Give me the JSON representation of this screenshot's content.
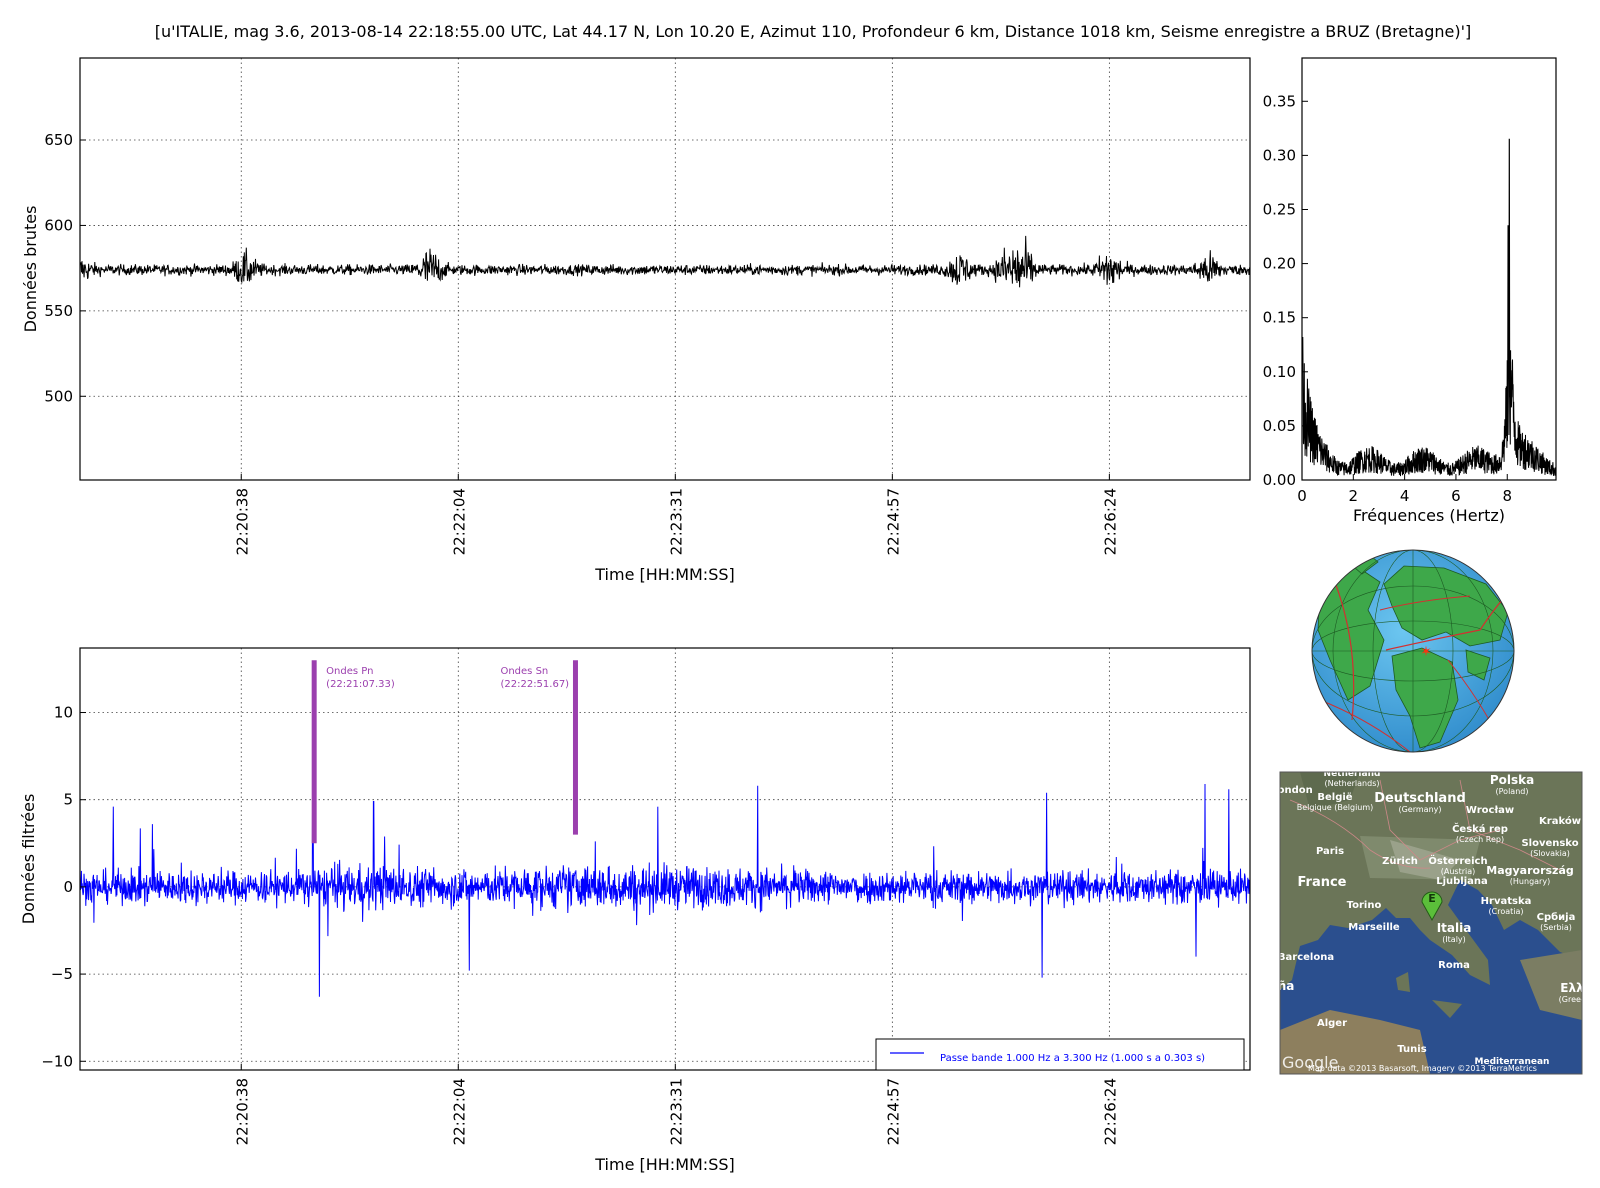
{
  "figure_title": "[u'ITALIE, mag 3.6, 2013-08-14 22:18:55.00 UTC, Lat 44.17 N, Lon 10.20 E, Azimut 110, Profondeur 6 km, Distance 1018 km, Seisme enregistre a BRUZ (Bretagne)']",
  "colors": {
    "raw": "#000000",
    "filtered": "#0000ff",
    "markers": "#9b3fae",
    "legend_text": "#0000ff"
  },
  "chart_data": [
    {
      "id": "raw",
      "type": "line",
      "xlabel": "Time [HH:MM:SS]",
      "ylabel": "Données brutes",
      "x_ticks": [
        "22:20:38",
        "22:22:04",
        "22:23:31",
        "22:24:57",
        "22:26:24"
      ],
      "x_tick_values": [
        0,
        1,
        2,
        3,
        4
      ],
      "xlim": [
        -0.743,
        4.648
      ],
      "ylim": [
        451,
        698
      ],
      "y_ticks": [
        500,
        550,
        600,
        650
      ],
      "grid": true,
      "baseline": 574,
      "noise_envelope": 4,
      "events": [
        {
          "x": 0.02,
          "amplitude": 10
        },
        {
          "x": -0.74,
          "amplitude": 7
        },
        {
          "x": 0.87,
          "amplitude": 14
        },
        {
          "x": 3.31,
          "amplitude": 11
        },
        {
          "x": 3.53,
          "amplitude": 13
        },
        {
          "x": 3.6,
          "amplitude": 18
        },
        {
          "x": 4.0,
          "amplitude": 14
        },
        {
          "x": 4.46,
          "amplitude": 10
        }
      ]
    },
    {
      "id": "spectrum",
      "type": "line",
      "xlabel": "Fréquences (Hertz)",
      "ylabel": "",
      "xlim": [
        0,
        9.9
      ],
      "ylim": [
        0,
        0.39
      ],
      "x_ticks": [
        0,
        2,
        4,
        6,
        8
      ],
      "y_ticks": [
        "0.00",
        "0.05",
        "0.10",
        "0.15",
        "0.20",
        "0.25",
        "0.30",
        "0.35"
      ],
      "y_tick_values": [
        0,
        0.05,
        0.1,
        0.15,
        0.2,
        0.25,
        0.3,
        0.35
      ],
      "peaks": [
        {
          "x": 0.0,
          "y": 0.13
        },
        {
          "x": 0.2,
          "y": 0.08
        },
        {
          "x": 8.08,
          "y": 0.315
        },
        {
          "x": 8.05,
          "y": 0.235
        }
      ],
      "floor": 0.012
    },
    {
      "id": "filtered",
      "type": "line",
      "xlabel": "Time [HH:MM:SS]",
      "ylabel": "Données filtrées",
      "x_ticks": [
        "22:20:38",
        "22:22:04",
        "22:23:31",
        "22:24:57",
        "22:26:24"
      ],
      "x_tick_values": [
        0,
        1,
        2,
        3,
        4
      ],
      "xlim": [
        -0.743,
        4.648
      ],
      "ylim": [
        -10.5,
        13.7
      ],
      "y_ticks": [
        "−10",
        "−5",
        "0",
        "5",
        "10"
      ],
      "y_tick_values": [
        -10,
        -5,
        0,
        5,
        10
      ],
      "grid": true,
      "legend": {
        "label": "Passe bande 1.000 Hz a 3.300 Hz (1.000 s a 0.303 s)",
        "position": "lower right"
      },
      "spikes": [
        {
          "x": -0.59,
          "y": 4.6
        },
        {
          "x": 0.33,
          "y": 6.0
        },
        {
          "x": 0.36,
          "y": -6.3
        },
        {
          "x": 0.61,
          "y": 4.9
        },
        {
          "x": 1.05,
          "y": -4.8
        },
        {
          "x": 2.38,
          "y": 5.8
        },
        {
          "x": 3.71,
          "y": 5.4
        },
        {
          "x": 3.69,
          "y": -5.2
        },
        {
          "x": 4.44,
          "y": 5.9
        },
        {
          "x": 4.55,
          "y": 5.6
        },
        {
          "x": -0.41,
          "y": 3.6
        },
        {
          "x": 1.92,
          "y": 4.6
        },
        {
          "x": 4.4,
          "y": -4.0
        }
      ],
      "markers": [
        {
          "label": "Ondes Pn",
          "time": "(22:21:07.33)",
          "x": 0.336,
          "y_top": 13.0,
          "y_bottom": 2.5
        },
        {
          "label": "Ondes Sn",
          "time": "(22:22:51.67)",
          "x": 1.54,
          "y_top": 13.0,
          "y_bottom": 3.0
        }
      ]
    }
  ],
  "maps": {
    "regional": {
      "labels": [
        {
          "text": "Netherland",
          "sub": "(Netherlands)"
        },
        {
          "text": "Polska",
          "sub": "(Poland)"
        },
        {
          "text": "London",
          "sub": ""
        },
        {
          "text": "België",
          "sub": "Belgique (Belgium)"
        },
        {
          "text": "Deutschland",
          "sub": "(Germany)"
        },
        {
          "text": "Wrocław",
          "sub": ""
        },
        {
          "text": "Kraków",
          "sub": ""
        },
        {
          "text": "Česká rep",
          "sub": "(Czech Rep)"
        },
        {
          "text": "Slovensko",
          "sub": "(Slovakia)"
        },
        {
          "text": "Paris",
          "sub": ""
        },
        {
          "text": "Zürich",
          "sub": ""
        },
        {
          "text": "Österreich",
          "sub": "(Austria)"
        },
        {
          "text": "Magyarország",
          "sub": "(Hungary)"
        },
        {
          "text": "France",
          "sub": ""
        },
        {
          "text": "Ljubljana",
          "sub": ""
        },
        {
          "text": "Torino",
          "sub": ""
        },
        {
          "text": "Hrvatska",
          "sub": "(Croatia)"
        },
        {
          "text": "Србија",
          "sub": "(Serbia)"
        },
        {
          "text": "Marseille",
          "sub": ""
        },
        {
          "text": "Italia",
          "sub": "(Italy)"
        },
        {
          "text": "Barcelona",
          "sub": ""
        },
        {
          "text": "Roma",
          "sub": ""
        },
        {
          "text": "Ελλ",
          "sub": "(Greec"
        },
        {
          "text": "aña",
          "sub": ""
        },
        {
          "text": "Alger",
          "sub": ""
        },
        {
          "text": "Tunis",
          "sub": ""
        },
        {
          "text": "Mediterranean",
          "sub": ""
        }
      ],
      "marker_letter": "E",
      "attribution": "Map data ©2013 Basarsoft, Imagery ©2013 TerraMetrics",
      "logo": "Google"
    }
  }
}
